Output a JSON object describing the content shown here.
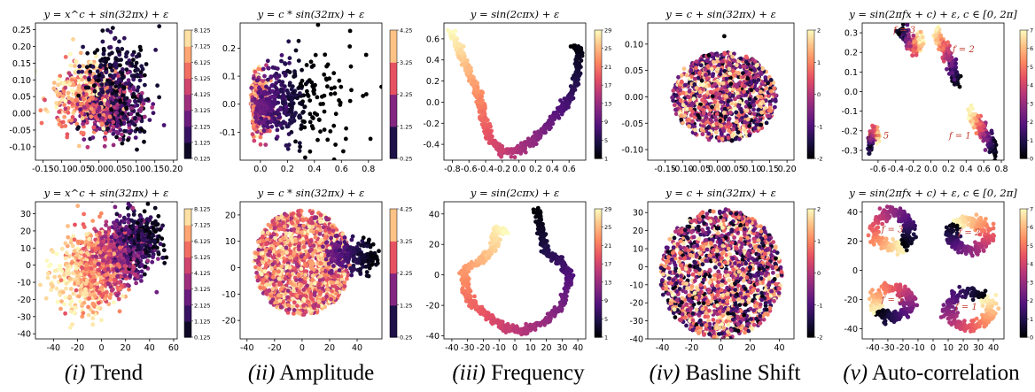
{
  "colors": {
    "colormap": [
      "#000004",
      "#1d1147",
      "#51127c",
      "#832681",
      "#b73779",
      "#e75263",
      "#fc8961",
      "#fec287",
      "#fcfdbf"
    ],
    "axis": "#000000"
  },
  "captions": [
    {
      "roman": "(i)",
      "text": "Trend"
    },
    {
      "roman": "(ii)",
      "text": "Amplitude"
    },
    {
      "roman": "(iii)",
      "text": "Frequency"
    },
    {
      "roman": "(iv)",
      "text": "Basline Shift"
    },
    {
      "roman": "(v)",
      "text": "Auto-correlation"
    }
  ],
  "chart_data": [
    {
      "type": "scatter",
      "shape": "trend",
      "title": "y = x^c + sin(32πx) + ε",
      "xlim": [
        -0.17,
        0.21
      ],
      "ylim": [
        -0.14,
        0.27
      ],
      "xticks": [
        "-0.15",
        "-0.10",
        "-0.05",
        "0.00",
        "0.05",
        "0.10",
        "0.15",
        "0.20"
      ],
      "xtick_values": [
        -0.15,
        -0.1,
        -0.05,
        0,
        0.05,
        0.1,
        0.15,
        0.2
      ],
      "yticks": [
        "0.25",
        "0.20",
        "0.15",
        "0.10",
        "0.05",
        "0.00",
        "-0.05",
        "-0.10"
      ],
      "ytick_values": [
        0.25,
        0.2,
        0.15,
        0.1,
        0.05,
        0,
        -0.05,
        -0.1
      ],
      "colorbar": {
        "ticks": [
          "8.125",
          "7.125",
          "6.125",
          "5.125",
          "4.125",
          "3.125",
          "2.125",
          "1.125",
          "0.125"
        ],
        "range": [
          0.125,
          8.125
        ],
        "discrete": true
      }
    },
    {
      "type": "scatter",
      "shape": "amplitude",
      "title": "y = c * sin(32πx) + ε",
      "xlim": [
        -0.15,
        0.9
      ],
      "ylim": [
        -0.2,
        0.29
      ],
      "xticks": [
        "0.0",
        "0.2",
        "0.4",
        "0.6",
        "0.8"
      ],
      "xtick_values": [
        0,
        0.2,
        0.4,
        0.6,
        0.8
      ],
      "yticks": [
        "0.2",
        "0.1",
        "0.0",
        "-0.1"
      ],
      "ytick_values": [
        0.2,
        0.1,
        0,
        -0.1
      ],
      "colorbar": {
        "ticks": [
          "4.25",
          "3.25",
          "2.25",
          "1.25",
          "0.25"
        ],
        "range": [
          0.25,
          4.25
        ],
        "discrete": true
      }
    },
    {
      "type": "scatter",
      "shape": "frequency",
      "title": "y = sin(2cπx) + ε",
      "xlim": [
        -0.9,
        0.8
      ],
      "ylim": [
        -0.55,
        0.75
      ],
      "xticks": [
        "-0.8",
        "-0.6",
        "-0.4",
        "-0.2",
        "0.0",
        "0.2",
        "0.4",
        "0.6"
      ],
      "xtick_values": [
        -0.8,
        -0.6,
        -0.4,
        -0.2,
        0,
        0.2,
        0.4,
        0.6
      ],
      "yticks": [
        "0.6",
        "0.4",
        "0.2",
        "0.0",
        "-0.2",
        "-0.4"
      ],
      "ytick_values": [
        0.6,
        0.4,
        0.2,
        0,
        -0.2,
        -0.4
      ],
      "colorbar": {
        "ticks": [
          "29",
          "25",
          "21",
          "17",
          "13",
          "9",
          "5",
          "1"
        ],
        "range": [
          1,
          31
        ],
        "discrete": false
      }
    },
    {
      "type": "scatter",
      "shape": "baseline",
      "title": "y = c + sin(32πx) + ε",
      "xlim": [
        -0.2,
        0.22
      ],
      "ylim": [
        -0.12,
        0.14
      ],
      "xticks": [
        "-0.15",
        "-0.10",
        "-0.05",
        "0.00",
        "0.05",
        "0.10",
        "0.15",
        "0.20"
      ],
      "xtick_values": [
        -0.15,
        -0.1,
        -0.05,
        0,
        0.05,
        0.1,
        0.15,
        0.2
      ],
      "yticks": [
        "0.10",
        "0.05",
        "0.00",
        "-0.05",
        "-0.10"
      ],
      "ytick_values": [
        0.1,
        0.05,
        0,
        -0.05,
        -0.1
      ],
      "colorbar": {
        "ticks": [
          "2",
          "1",
          "0",
          "-1",
          "-2"
        ],
        "range": [
          -2,
          2
        ],
        "discrete": false
      }
    },
    {
      "type": "scatter",
      "shape": "autocorr_top",
      "title": "y = sin(2πfx + c) + ε,  c ∈ [0, 2π]",
      "xlim": [
        -0.78,
        0.83
      ],
      "ylim": [
        -0.35,
        0.35
      ],
      "xticks": [
        "-0.6",
        "-0.4",
        "-0.2",
        "0.0",
        "0.2",
        "0.4",
        "0.6",
        "0.8"
      ],
      "xtick_values": [
        -0.6,
        -0.4,
        -0.2,
        0,
        0.2,
        0.4,
        0.6,
        0.8
      ],
      "yticks": [
        "0.3",
        "0.2",
        "0.1",
        "0.0",
        "-0.1",
        "-0.2",
        "-0.3"
      ],
      "ytick_values": [
        0.3,
        0.2,
        0.1,
        0,
        -0.1,
        -0.2,
        -0.3
      ],
      "annotations": [
        {
          "text": "f = 3",
          "x": -0.3,
          "y": 0.3
        },
        {
          "text": "f = 2",
          "x": 0.37,
          "y": 0.2
        },
        {
          "text": "f = 5",
          "x": -0.6,
          "y": -0.24
        },
        {
          "text": "f = 1",
          "x": 0.33,
          "y": -0.24
        }
      ],
      "colorbar": {
        "ticks": [
          "7",
          "6",
          "5",
          "4",
          "3",
          "2",
          "1",
          "0"
        ],
        "range": [
          0,
          7
        ],
        "discrete": false
      }
    },
    {
      "type": "scatter",
      "shape": "trend2",
      "title": "y = x^c + sin(32πx) + ε",
      "xlim": [
        -55,
        63
      ],
      "ylim": [
        -43,
        37
      ],
      "xticks": [
        "-40",
        "-20",
        "0",
        "20",
        "40",
        "60"
      ],
      "xtick_values": [
        -40,
        -20,
        0,
        20,
        40,
        60
      ],
      "yticks": [
        "30",
        "20",
        "10",
        "0",
        "-10",
        "-20",
        "-30",
        "-40"
      ],
      "ytick_values": [
        30,
        20,
        10,
        0,
        -10,
        -20,
        -30,
        -40
      ],
      "colorbar": {
        "ticks": [
          "8.125",
          "7.125",
          "6.125",
          "5.125",
          "4.125",
          "3.125",
          "2.125",
          "1.125",
          "0.125"
        ],
        "range": [
          0.125,
          8.125
        ],
        "discrete": true
      }
    },
    {
      "type": "scatter",
      "shape": "amplitude2",
      "title": "y = c * sin(32πx) + ε",
      "xlim": [
        -45,
        58
      ],
      "ylim": [
        -27,
        25
      ],
      "xticks": [
        "-40",
        "-20",
        "0",
        "20",
        "40"
      ],
      "xtick_values": [
        -40,
        -20,
        0,
        20,
        40
      ],
      "yticks": [
        "20",
        "10",
        "0",
        "-10",
        "-20"
      ],
      "ytick_values": [
        20,
        10,
        0,
        -10,
        -20
      ],
      "colorbar": {
        "ticks": [
          "4.25",
          "3.25",
          "2.25",
          "1.25",
          "0.25"
        ],
        "range": [
          0.25,
          4.25
        ],
        "discrete": true
      }
    },
    {
      "type": "scatter",
      "shape": "frequency2",
      "title": "y = sin(2cπx) + ε",
      "xlim": [
        -45,
        45
      ],
      "ylim": [
        -42,
        48
      ],
      "xticks": [
        "-40",
        "-30",
        "-20",
        "-10",
        "0",
        "10",
        "20",
        "30",
        "40"
      ],
      "xtick_values": [
        -40,
        -30,
        -20,
        -10,
        0,
        10,
        20,
        30,
        40
      ],
      "yticks": [
        "40",
        "20",
        "0",
        "-20",
        "-40"
      ],
      "ytick_values": [
        40,
        20,
        0,
        -20,
        -40
      ],
      "colorbar": {
        "ticks": [
          "29",
          "25",
          "21",
          "17",
          "13",
          "9",
          "5",
          "1"
        ],
        "range": [
          1,
          31
        ],
        "discrete": false
      }
    },
    {
      "type": "scatter",
      "shape": "baseline2",
      "title": "y = c + sin(32πx) + ε",
      "xlim": [
        -50,
        50
      ],
      "ylim": [
        -40,
        36
      ],
      "xticks": [
        "-40",
        "-20",
        "0",
        "20",
        "40"
      ],
      "xtick_values": [
        -40,
        -20,
        0,
        20,
        40
      ],
      "yticks": [
        "30",
        "20",
        "10",
        "0",
        "-10",
        "-20",
        "-30",
        "-40"
      ],
      "ytick_values": [
        30,
        20,
        10,
        0,
        -10,
        -20,
        -30,
        -40
      ],
      "colorbar": {
        "ticks": [
          "2",
          "1",
          "0",
          "-1",
          "-2"
        ],
        "range": [
          -2,
          2
        ],
        "discrete": false
      }
    },
    {
      "type": "scatter",
      "shape": "autocorr_bottom",
      "title": "y = sin(2πfx + c) + ε,  c ∈ [0, 2π]",
      "xlim": [
        -47,
        47
      ],
      "ylim": [
        -47,
        47
      ],
      "xticks": [
        "-40",
        "-30",
        "-20",
        "-10",
        "0",
        "10",
        "20",
        "30",
        "40"
      ],
      "xtick_values": [
        -40,
        -30,
        -20,
        -10,
        0,
        10,
        20,
        30,
        40
      ],
      "yticks": [
        "40",
        "20",
        "0",
        "-20",
        "-40"
      ],
      "ytick_values": [
        40,
        20,
        0,
        -20,
        -40
      ],
      "annotations": [
        {
          "text": "f = 3",
          "x": -27,
          "y": 26
        },
        {
          "text": "f = 2",
          "x": 24,
          "y": 24
        },
        {
          "text": "f = 5",
          "x": -27,
          "y": -22
        },
        {
          "text": "f = 1",
          "x": 22,
          "y": -27
        }
      ],
      "colorbar": {
        "ticks": [
          "7",
          "6",
          "5",
          "4",
          "3",
          "2",
          "1",
          "0"
        ],
        "range": [
          0,
          7
        ],
        "discrete": false
      }
    }
  ]
}
